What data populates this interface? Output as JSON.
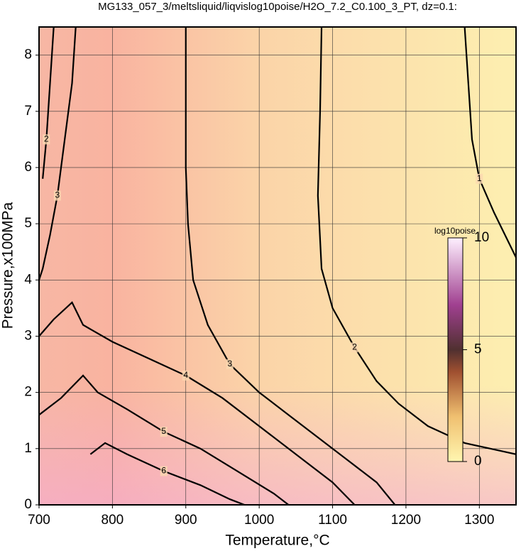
{
  "chart_data": {
    "type": "contour",
    "title": "MG133_057_3/meltsliquid/liqvislog10poise/H2O_7.2_C0.100_3_PT, dz=0.1:",
    "xlabel": "Temperature,°C",
    "ylabel": "Pressure,x100MPa",
    "xlim": [
      700,
      1350
    ],
    "ylim": [
      0,
      8.5
    ],
    "xticks": [
      700,
      800,
      900,
      1000,
      1100,
      1200,
      1300
    ],
    "yticks": [
      0,
      1,
      2,
      3,
      4,
      5,
      6,
      7,
      8
    ],
    "grid": true,
    "contours": [
      {
        "level": 1,
        "x": [
          1280,
          1285,
          1290,
          1300,
          1320,
          1350
        ],
        "y": [
          8.5,
          7.5,
          6.5,
          5.8,
          5.2,
          4.4
        ]
      },
      {
        "level": 2,
        "x": [
          1085,
          1083,
          1080,
          1085,
          1100,
          1130,
          1160,
          1190,
          1230,
          1280,
          1350
        ],
        "y": [
          8.5,
          7,
          5.5,
          4.2,
          3.5,
          2.8,
          2.2,
          1.8,
          1.4,
          1.1,
          0.9
        ]
      },
      {
        "level": 2,
        "x": [
          720,
          715,
          710,
          705
        ],
        "y": [
          8.5,
          7.5,
          6.5,
          5.8
        ]
      },
      {
        "level": 3,
        "x": [
          900,
          900,
          900,
          903,
          910,
          930,
          960,
          1000,
          1040,
          1080,
          1120,
          1160,
          1185
        ],
        "y": [
          8.5,
          7,
          6,
          5,
          4,
          3.2,
          2.5,
          2,
          1.6,
          1.2,
          0.8,
          0.4,
          0
        ]
      },
      {
        "level": 3,
        "x": [
          750,
          745,
          735,
          725,
          715,
          705,
          700
        ],
        "y": [
          8.5,
          7.5,
          6.5,
          5.5,
          4.8,
          4.2,
          4.0
        ]
      },
      {
        "level": 4,
        "x": [
          700,
          720,
          745,
          760,
          800,
          850,
          900,
          950,
          1000,
          1050,
          1100,
          1130
        ],
        "y": [
          3.0,
          3.3,
          3.6,
          3.2,
          2.9,
          2.6,
          2.3,
          1.9,
          1.4,
          0.9,
          0.4,
          0
        ]
      },
      {
        "level": 5,
        "x": [
          700,
          730,
          760,
          780,
          820,
          870,
          920,
          970,
          1020,
          1040
        ],
        "y": [
          1.6,
          1.9,
          2.3,
          2.0,
          1.7,
          1.3,
          1.0,
          0.6,
          0.2,
          0
        ]
      },
      {
        "level": 6,
        "x": [
          770,
          790,
          820,
          870,
          920,
          960,
          980
        ],
        "y": [
          0.9,
          1.1,
          0.9,
          0.6,
          0.35,
          0.1,
          0
        ]
      }
    ],
    "colorbar": {
      "label": "log10poise",
      "lim": [
        0,
        10
      ],
      "ticks": [
        0,
        5,
        10
      ]
    }
  }
}
